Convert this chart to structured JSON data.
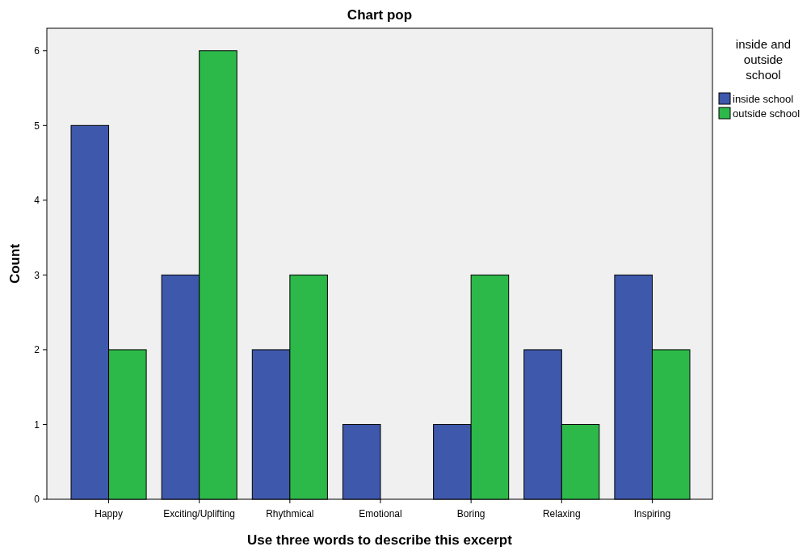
{
  "chart_data": {
    "type": "bar",
    "title": "Chart pop",
    "xlabel": "Use three words to describe this excerpt",
    "ylabel": "Count",
    "legend_title": "inside and outside school",
    "categories": [
      "Happy",
      "Exciting/Uplifting",
      "Rhythmical",
      "Emotional",
      "Boring",
      "Relaxing",
      "Inspiring"
    ],
    "series": [
      {
        "name": "inside school",
        "color": "#3e58ac",
        "values": [
          5,
          3,
          2,
          1,
          1,
          2,
          3
        ]
      },
      {
        "name": "outside school",
        "color": "#2db84a",
        "values": [
          2,
          6,
          3,
          0,
          3,
          1,
          2
        ]
      }
    ],
    "ylim": [
      0,
      6.3
    ],
    "yticks": [
      0,
      1,
      2,
      3,
      4,
      5,
      6
    ],
    "legend": "right",
    "grid": false
  }
}
